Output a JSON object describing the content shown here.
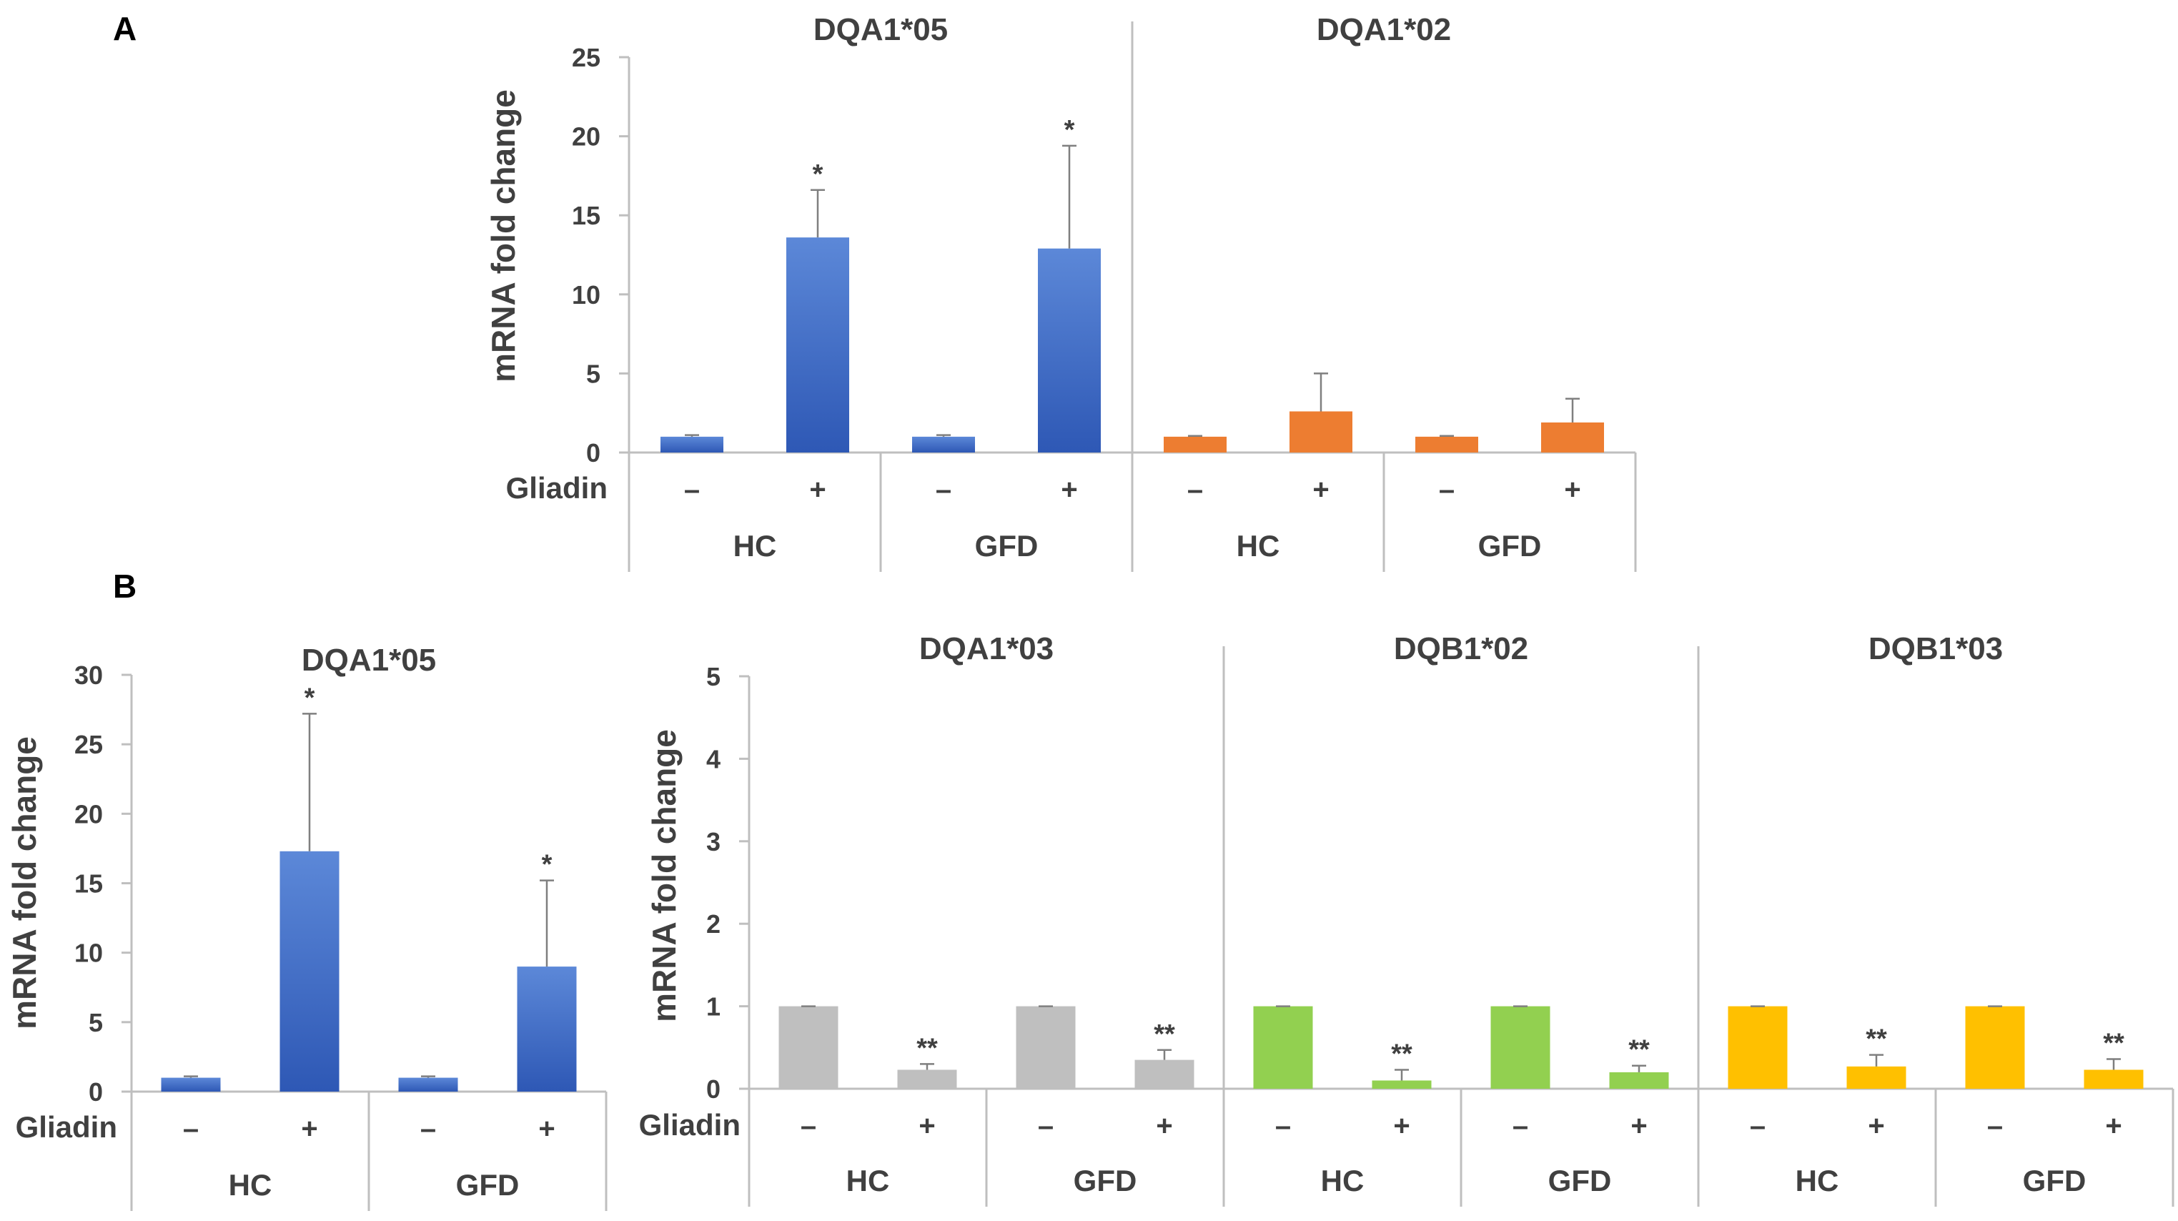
{
  "figure": {
    "panel_a_label": "A",
    "panel_b_label": "B",
    "y_axis_label": "mRNA fold change",
    "factor_label": "Gliadin",
    "minus_sign": "–",
    "plus_sign": "+"
  },
  "colors": {
    "blue": "#3c6cc6",
    "orange": "#ed7d31",
    "gray": "#bfbfbf",
    "green": "#92d050",
    "yellow": "#ffc000",
    "axis": "#bfbfbf",
    "text": "#404040"
  },
  "chart_data": [
    {
      "type": "bar",
      "panel": "A",
      "ylabel": "mRNA fold change",
      "ylim": [
        0,
        25
      ],
      "yticks": [
        0,
        5,
        10,
        15,
        20,
        25
      ],
      "grid": false,
      "subplots": [
        {
          "title": "DQA1*05",
          "color": "blue",
          "groups": [
            {
              "name": "HC",
              "bars": [
                {
                  "gliadin": "–",
                  "value": 1.0,
                  "error": 0.1,
                  "sig": ""
                },
                {
                  "gliadin": "+",
                  "value": 13.6,
                  "error": 3.0,
                  "sig": "*"
                }
              ]
            },
            {
              "name": "GFD",
              "bars": [
                {
                  "gliadin": "–",
                  "value": 1.0,
                  "error": 0.1,
                  "sig": ""
                },
                {
                  "gliadin": "+",
                  "value": 12.9,
                  "error": 6.5,
                  "sig": "*"
                }
              ]
            }
          ]
        },
        {
          "title": "DQA1*02",
          "color": "orange",
          "groups": [
            {
              "name": "HC",
              "bars": [
                {
                  "gliadin": "–",
                  "value": 1.0,
                  "error": 0.05,
                  "sig": ""
                },
                {
                  "gliadin": "+",
                  "value": 2.6,
                  "error": 2.4,
                  "sig": ""
                }
              ]
            },
            {
              "name": "GFD",
              "bars": [
                {
                  "gliadin": "–",
                  "value": 1.0,
                  "error": 0.05,
                  "sig": ""
                },
                {
                  "gliadin": "+",
                  "value": 1.9,
                  "error": 1.5,
                  "sig": ""
                }
              ]
            }
          ]
        }
      ]
    },
    {
      "type": "bar",
      "panel": "B",
      "ylabel": "mRNA fold change",
      "ylim": [
        0,
        30
      ],
      "yticks": [
        0,
        5,
        10,
        15,
        20,
        25,
        30
      ],
      "grid": false,
      "subplots": [
        {
          "title": "DQA1*05",
          "color": "blue",
          "groups": [
            {
              "name": "HC",
              "bars": [
                {
                  "gliadin": "–",
                  "value": 1.0,
                  "error": 0.1,
                  "sig": ""
                },
                {
                  "gliadin": "+",
                  "value": 17.3,
                  "error": 9.9,
                  "sig": "*"
                }
              ]
            },
            {
              "name": "GFD",
              "bars": [
                {
                  "gliadin": "–",
                  "value": 1.0,
                  "error": 0.1,
                  "sig": ""
                },
                {
                  "gliadin": "+",
                  "value": 9.0,
                  "error": 6.2,
                  "sig": "*"
                }
              ]
            }
          ]
        }
      ]
    },
    {
      "type": "bar",
      "panel": "B",
      "ylabel": "mRNA fold change",
      "ylim": [
        0,
        5
      ],
      "yticks": [
        0,
        1,
        2,
        3,
        4,
        5
      ],
      "grid": false,
      "subplots": [
        {
          "title": "DQA1*03",
          "color": "gray",
          "groups": [
            {
              "name": "HC",
              "bars": [
                {
                  "gliadin": "–",
                  "value": 1.0,
                  "error": 0.0,
                  "sig": ""
                },
                {
                  "gliadin": "+",
                  "value": 0.23,
                  "error": 0.07,
                  "sig": "**"
                }
              ]
            },
            {
              "name": "GFD",
              "bars": [
                {
                  "gliadin": "–",
                  "value": 1.0,
                  "error": 0.0,
                  "sig": ""
                },
                {
                  "gliadin": "+",
                  "value": 0.35,
                  "error": 0.12,
                  "sig": "**"
                }
              ]
            }
          ]
        },
        {
          "title": "DQB1*02",
          "color": "green",
          "groups": [
            {
              "name": "HC",
              "bars": [
                {
                  "gliadin": "–",
                  "value": 1.0,
                  "error": 0.0,
                  "sig": ""
                },
                {
                  "gliadin": "+",
                  "value": 0.1,
                  "error": 0.13,
                  "sig": "**"
                }
              ]
            },
            {
              "name": "GFD",
              "bars": [
                {
                  "gliadin": "–",
                  "value": 1.0,
                  "error": 0.0,
                  "sig": ""
                },
                {
                  "gliadin": "+",
                  "value": 0.2,
                  "error": 0.08,
                  "sig": "**"
                }
              ]
            }
          ]
        },
        {
          "title": "DQB1*03",
          "color": "yellow",
          "groups": [
            {
              "name": "HC",
              "bars": [
                {
                  "gliadin": "–",
                  "value": 1.0,
                  "error": 0.0,
                  "sig": ""
                },
                {
                  "gliadin": "+",
                  "value": 0.27,
                  "error": 0.14,
                  "sig": "**"
                }
              ]
            },
            {
              "name": "GFD",
              "bars": [
                {
                  "gliadin": "–",
                  "value": 1.0,
                  "error": 0.0,
                  "sig": ""
                },
                {
                  "gliadin": "+",
                  "value": 0.23,
                  "error": 0.13,
                  "sig": "**"
                }
              ]
            }
          ]
        }
      ]
    }
  ]
}
